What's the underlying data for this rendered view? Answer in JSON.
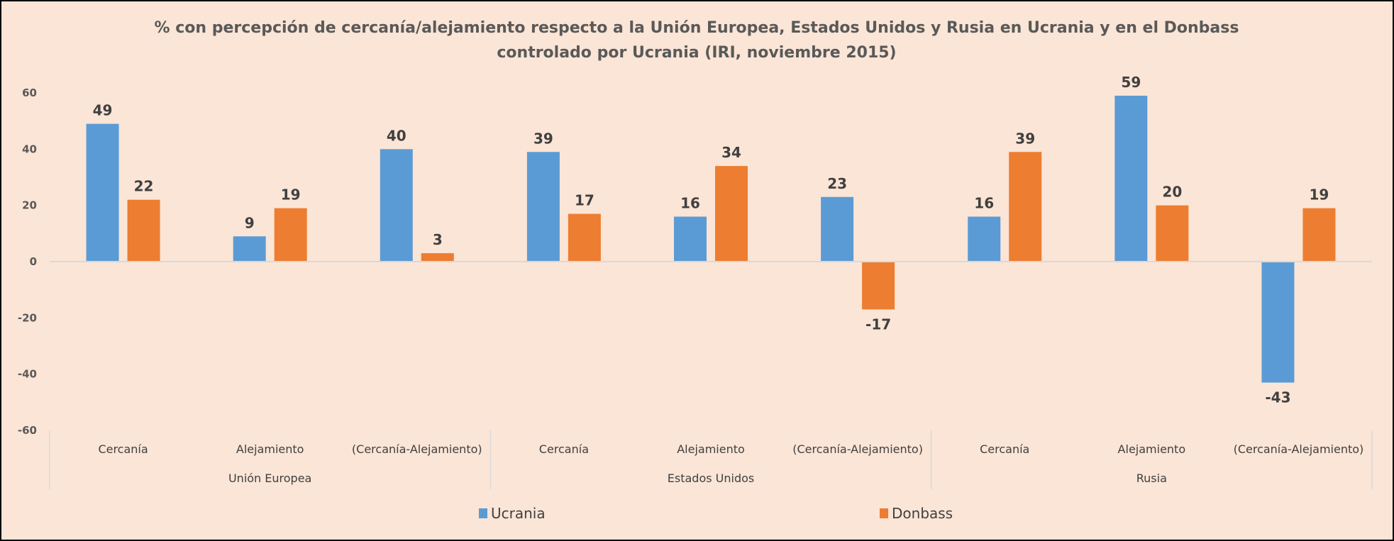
{
  "chart_data": {
    "type": "bar",
    "title_lines": [
      "% con percepción de cercanía/alejamiento respecto a la Unión Europea, Estados Unidos y Rusia en Ucrania y en el Donbass",
      "controlado por Ucrania (IRI, noviembre 2015)"
    ],
    "categories": [
      "Cercanía",
      "Alejamiento",
      "(Cercanía-Alejamiento)",
      "Cercanía",
      "Alejamiento",
      "(Cercanía-Alejamiento)",
      "Cercanía",
      "Alejamiento",
      "(Cercanía-Alejamiento)"
    ],
    "groups": [
      {
        "label": "Unión Europea",
        "span": 3
      },
      {
        "label": "Estados Unidos",
        "span": 3
      },
      {
        "label": "Rusia",
        "span": 3
      }
    ],
    "series": [
      {
        "name": "Ucrania",
        "color": "#5b9bd5",
        "values": [
          49,
          9,
          40,
          39,
          16,
          23,
          16,
          59,
          -43
        ]
      },
      {
        "name": "Donbass",
        "color": "#ed7d31",
        "values": [
          22,
          19,
          3,
          17,
          34,
          -17,
          39,
          20,
          19
        ]
      }
    ],
    "yticks": [
      60,
      40,
      20,
      0,
      -20,
      -40,
      -60
    ],
    "ylim": [
      -60,
      60
    ],
    "xlabel": "",
    "ylabel": "",
    "grid": false,
    "data_labels": true,
    "legend_position": "bottom",
    "background_color": "#fbe5d6"
  }
}
